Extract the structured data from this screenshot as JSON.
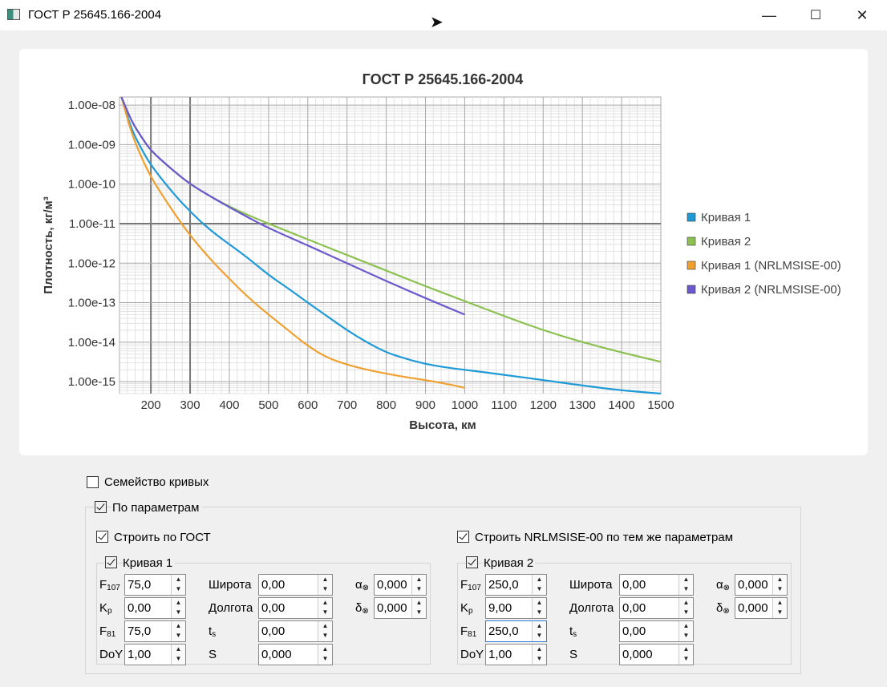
{
  "window": {
    "title": "ГОСТ Р 25645.166-2004",
    "minimize": "—",
    "maximize": "☐",
    "close": "✕"
  },
  "chart_data": {
    "type": "line",
    "title": "ГОСТ Р 25645.166-2004",
    "xlabel": "Высота, км",
    "ylabel": "Плотность, кг/м³",
    "xlim": [
      120,
      1500
    ],
    "ylim": [
      5e-16,
      1.6e-08
    ],
    "yscale": "log",
    "grid": true,
    "legend_position": "right",
    "x_ticks": [
      "200",
      "300",
      "400",
      "500",
      "600",
      "700",
      "800",
      "900",
      "1000",
      "1100",
      "1200",
      "1300",
      "1400",
      "1500"
    ],
    "y_ticks": [
      "1.00e-08",
      "1.00e-09",
      "1.00e-10",
      "1.00e-11",
      "1.00e-12",
      "1.00e-13",
      "1.00e-14",
      "1.00e-15"
    ],
    "series": [
      {
        "name": "Кривая 1",
        "color": "#1f9ad6",
        "x": [
          125,
          150,
          175,
          200,
          250,
          300,
          350,
          400,
          450,
          500,
          550,
          600,
          650,
          700,
          750,
          800,
          850,
          900,
          950,
          1000,
          1100,
          1200,
          1300,
          1400,
          1500
        ],
        "y": [
          1.6e-08,
          2.5e-09,
          8e-10,
          3e-10,
          7e-11,
          2e-11,
          7e-12,
          3e-12,
          1.3e-12,
          5e-13,
          2.3e-13,
          1e-13,
          4.5e-14,
          2e-14,
          1e-14,
          5.5e-15,
          3.8e-15,
          2.8e-15,
          2.3e-15,
          2e-15,
          1.5e-15,
          1.1e-15,
          8e-16,
          6e-16,
          4e-16
        ]
      },
      {
        "name": "Кривая 2",
        "color": "#8cc152",
        "x": [
          125,
          150,
          175,
          200,
          250,
          300,
          350,
          400,
          450,
          500,
          600,
          700,
          800,
          900,
          1000,
          1100,
          1200,
          1300,
          1400,
          1500
        ],
        "y": [
          1.6e-08,
          4e-09,
          1.6e-09,
          7e-10,
          2.5e-10,
          1e-10,
          5e-11,
          2.7e-11,
          1.6e-11,
          1e-11,
          4e-12,
          1.6e-12,
          6.5e-13,
          2.6e-13,
          1.1e-13,
          4.6e-14,
          2e-14,
          1e-14,
          5.5e-15,
          3.2e-15
        ]
      },
      {
        "name": "Кривая 1 (NRLMSISE-00)",
        "color": "#f0a030",
        "x": [
          125,
          150,
          175,
          200,
          250,
          300,
          350,
          400,
          450,
          500,
          550,
          600,
          650,
          700,
          750,
          800,
          850,
          900,
          950,
          1000
        ],
        "y": [
          1.6e-08,
          2e-09,
          5e-10,
          1.5e-10,
          2.5e-11,
          5e-12,
          1.3e-12,
          4e-13,
          1.3e-13,
          5e-14,
          2e-14,
          8e-15,
          4e-15,
          2.7e-15,
          2e-15,
          1.6e-15,
          1.3e-15,
          1.1e-15,
          9e-16,
          7e-16
        ]
      },
      {
        "name": "Кривая 2 (NRLMSISE-00)",
        "color": "#6a5acd",
        "x": [
          125,
          150,
          175,
          200,
          250,
          300,
          350,
          400,
          450,
          500,
          600,
          700,
          800,
          900,
          1000
        ],
        "y": [
          1.6e-08,
          4e-09,
          1.6e-09,
          7e-10,
          2.5e-10,
          1e-10,
          5e-11,
          2.6e-11,
          1.4e-11,
          7.7e-12,
          2.8e-12,
          1e-12,
          3.5e-13,
          1.3e-13,
          5e-14
        ]
      }
    ]
  },
  "controls": {
    "family_label": "Семейство кривых",
    "family_checked": false,
    "by_params_label": "По параметрам",
    "by_params_checked": true,
    "gost_label": "Строить по ГОСТ",
    "nrl_label": "Строить NRLMSISE-00 по тем же параметрам",
    "curve1": {
      "title": "Кривая 1",
      "F107": "75,0",
      "Kp": "0,00",
      "F81": "75,0",
      "DoY": "1,00",
      "lat": "0,00",
      "lon": "0,00",
      "ts": "0,00",
      "S": "0,000",
      "alpha": "0,000",
      "delta": "0,000"
    },
    "curve2": {
      "title": "Кривая 2",
      "F107": "250,0",
      "Kp": "9,00",
      "F81": "250,0",
      "DoY": "1,00",
      "lat": "0,00",
      "lon": "0,00",
      "ts": "0,00",
      "S": "0,000",
      "alpha": "0,000",
      "delta": "0,000"
    },
    "labels": {
      "F": "F",
      "F107_sub": "107",
      "K": "K",
      "Kp_sub": "p",
      "F81_sub": "81",
      "DoY": "DoY",
      "lat": "Широта",
      "lon": "Долгота",
      "t": "t",
      "ts_sub": "s",
      "S": "S",
      "alpha": "α",
      "delta": "δ",
      "sun_sub": "⊗"
    }
  }
}
